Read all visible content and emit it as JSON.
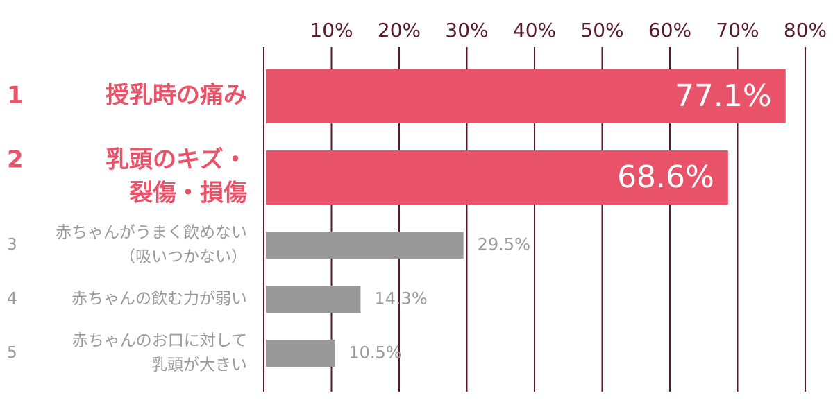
{
  "chart_data": {
    "type": "hbar",
    "ranks": [
      "1",
      "2",
      "3",
      "4",
      "5"
    ],
    "categories": [
      [
        "授乳時の痛み"
      ],
      [
        "乳頭のキズ・",
        "裂傷・損傷"
      ],
      [
        "赤ちゃんがうまく飲めない",
        "（吸いつかない）"
      ],
      [
        "赤ちゃんの飲む力が弱い"
      ],
      [
        "赤ちゃんのお口に対して",
        "乳頭が大きい"
      ]
    ],
    "values": [
      77.1,
      68.6,
      29.5,
      14.3,
      10.5
    ],
    "value_labels": [
      "77.1%",
      "68.6%",
      "29.5%",
      "14.3%",
      "10.5%"
    ],
    "colors": [
      "#e8536a",
      "#e8536a",
      "#999999",
      "#999999",
      "#999999"
    ],
    "emphasis": [
      true,
      true,
      false,
      false,
      false
    ],
    "xlim": [
      0,
      80
    ],
    "xticks": [
      {
        "value": 10,
        "label": "10%"
      },
      {
        "value": 20,
        "label": "20%"
      },
      {
        "value": 30,
        "label": "30%"
      },
      {
        "value": 40,
        "label": "40%"
      },
      {
        "value": 50,
        "label": "50%"
      },
      {
        "value": 60,
        "label": "60%"
      },
      {
        "value": 70,
        "label": "70%"
      },
      {
        "value": 80,
        "label": "80%"
      }
    ],
    "grid": true
  }
}
